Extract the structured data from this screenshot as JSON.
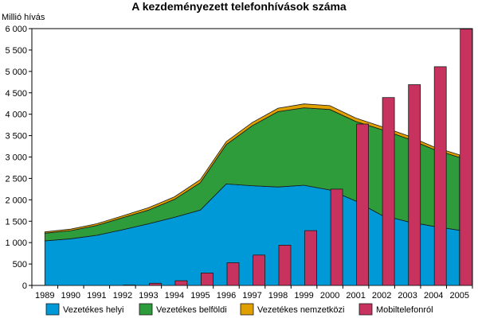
{
  "chart_data": {
    "type": "area",
    "title": "A kezdeményezett telefonhívások száma",
    "ylabel": "Millió hívás",
    "xlabel": "",
    "ylim": [
      0,
      6000
    ],
    "yticks": [
      "0",
      "500",
      "1 000",
      "1 500",
      "2 000",
      "2 500",
      "3 000",
      "3 500",
      "4 000",
      "4 500",
      "5 000",
      "5 500",
      "6 000"
    ],
    "ytick_values": [
      0,
      500,
      1000,
      1500,
      2000,
      2500,
      3000,
      3500,
      4000,
      4500,
      5000,
      5500,
      6000
    ],
    "categories": [
      "1989",
      "1990",
      "1991",
      "1992",
      "1993",
      "1994",
      "1995",
      "1996",
      "1997",
      "1998",
      "1999",
      "2000",
      "2001",
      "2002",
      "2003",
      "2004",
      "2005"
    ],
    "legend_position": "bottom",
    "grid": false,
    "series": [
      {
        "name": "Vezetékes helyi",
        "kind": "area",
        "color": "#0099d8",
        "values": [
          1040,
          1090,
          1170,
          1300,
          1440,
          1590,
          1760,
          2370,
          2330,
          2300,
          2340,
          2230,
          1970,
          1640,
          1490,
          1380,
          1290
        ]
      },
      {
        "name": "Vezetékes belföldi",
        "kind": "area",
        "color": "#2e9c3a",
        "values": [
          180,
          190,
          230,
          280,
          320,
          420,
          640,
          920,
          1400,
          1760,
          1810,
          1880,
          1860,
          2000,
          1940,
          1800,
          1700
        ]
      },
      {
        "name": "Vezetékes nemzetközi",
        "kind": "area",
        "color": "#e0a000",
        "values": [
          30,
          35,
          40,
          45,
          55,
          60,
          70,
          70,
          75,
          80,
          90,
          90,
          80,
          70,
          70,
          60,
          60
        ]
      },
      {
        "name": "Mobiltelefonról",
        "kind": "bar",
        "color": "#c8325f",
        "values": [
          0,
          0,
          0,
          10,
          50,
          110,
          290,
          530,
          710,
          940,
          1280,
          2250,
          3770,
          4390,
          4690,
          5110,
          5990
        ]
      }
    ]
  }
}
